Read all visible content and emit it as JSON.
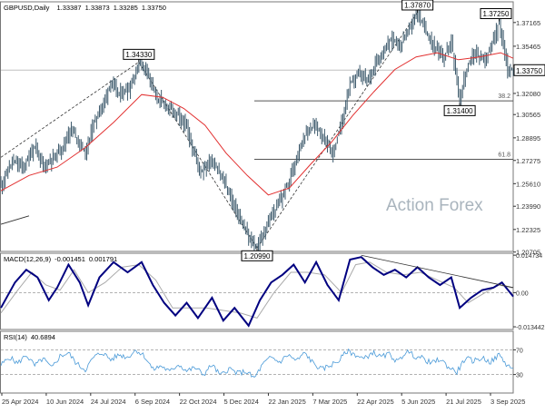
{
  "chart_data": {
    "type": "line",
    "symbol": "GBPUSD",
    "timeframe": "Daily",
    "title": "GBPUSD,Daily",
    "ohlc": {
      "open": "1.33387",
      "high": "1.33873",
      "low": "1.33285",
      "close": "1.33750"
    },
    "watermark": "Action Forex",
    "colors": {
      "price": "#3d5a6c",
      "ma": "#e23030",
      "macd_main": "#000080",
      "macd_signal": "#aaaaaa",
      "rsi": "#4a9ad8",
      "fib": "#555555",
      "trend": "#333333",
      "grid": "#c0c0c0"
    },
    "x_labels": [
      "25 Apr 2024",
      "10 Jun 2024",
      "24 Jul 2024",
      "6 Sep 2024",
      "22 Oct 2024",
      "5 Dec 2024",
      "22 Jan 2025",
      "7 Mar 2025",
      "22 Apr 2025",
      "5 Jun 2025",
      "21 Jul 2025",
      "3 Sep 2025"
    ],
    "price_panel": {
      "ylim": [
        1.2075,
        1.3865
      ],
      "y_ticks": [
        "1.37165",
        "1.35465",
        "1.33750",
        "1.32080",
        "1.30565",
        "1.28895",
        "1.27275",
        "1.25610",
        "1.23990",
        "1.22325",
        "1.20705"
      ],
      "current_price": "1.33750",
      "price_path": [
        [
          0,
          1.255
        ],
        [
          8,
          1.272
        ],
        [
          16,
          1.268
        ],
        [
          24,
          1.283
        ],
        [
          30,
          1.268
        ],
        [
          38,
          1.276
        ],
        [
          44,
          1.283
        ],
        [
          50,
          1.296
        ],
        [
          56,
          1.285
        ],
        [
          60,
          1.278
        ],
        [
          66,
          1.3
        ],
        [
          72,
          1.312
        ],
        [
          78,
          1.329
        ],
        [
          84,
          1.32
        ],
        [
          92,
          1.325
        ],
        [
          98,
          1.3433
        ],
        [
          104,
          1.338
        ],
        [
          110,
          1.318
        ],
        [
          118,
          1.312
        ],
        [
          126,
          1.305
        ],
        [
          132,
          1.296
        ],
        [
          136,
          1.281
        ],
        [
          142,
          1.265
        ],
        [
          150,
          1.273
        ],
        [
          158,
          1.258
        ],
        [
          166,
          1.24
        ],
        [
          172,
          1.225
        ],
        [
          178,
          1.214
        ],
        [
          182,
          1.2099
        ],
        [
          188,
          1.224
        ],
        [
          194,
          1.236
        ],
        [
          200,
          1.247
        ],
        [
          206,
          1.262
        ],
        [
          212,
          1.283
        ],
        [
          218,
          1.294
        ],
        [
          224,
          1.298
        ],
        [
          230,
          1.286
        ],
        [
          236,
          1.278
        ],
        [
          242,
          1.3
        ],
        [
          248,
          1.328
        ],
        [
          254,
          1.335
        ],
        [
          260,
          1.33
        ],
        [
          266,
          1.342
        ],
        [
          272,
          1.352
        ],
        [
          278,
          1.36
        ],
        [
          284,
          1.356
        ],
        [
          290,
          1.368
        ],
        [
          296,
          1.3787
        ],
        [
          302,
          1.365
        ],
        [
          308,
          1.354
        ],
        [
          314,
          1.346
        ],
        [
          320,
          1.358
        ],
        [
          326,
          1.314
        ],
        [
          330,
          1.336
        ],
        [
          336,
          1.35
        ],
        [
          342,
          1.345
        ],
        [
          348,
          1.352
        ],
        [
          354,
          1.3725
        ],
        [
          360,
          1.338
        ],
        [
          364,
          1.3375
        ]
      ],
      "ma_path": [
        [
          0,
          1.251
        ],
        [
          20,
          1.262
        ],
        [
          40,
          1.268
        ],
        [
          60,
          1.282
        ],
        [
          80,
          1.3
        ],
        [
          100,
          1.32
        ],
        [
          115,
          1.318
        ],
        [
          130,
          1.31
        ],
        [
          145,
          1.298
        ],
        [
          160,
          1.278
        ],
        [
          175,
          1.262
        ],
        [
          190,
          1.248
        ],
        [
          205,
          1.253
        ],
        [
          220,
          1.27
        ],
        [
          235,
          1.286
        ],
        [
          250,
          1.305
        ],
        [
          265,
          1.322
        ],
        [
          280,
          1.338
        ],
        [
          295,
          1.347
        ],
        [
          310,
          1.35
        ],
        [
          325,
          1.345
        ],
        [
          340,
          1.347
        ],
        [
          355,
          1.35
        ],
        [
          364,
          1.346
        ]
      ],
      "annotations": [
        {
          "x": 98,
          "value": 1.3433,
          "text": "1.34330",
          "position": "above"
        },
        {
          "x": 182,
          "value": 1.2099,
          "text": "1.20990",
          "position": "below"
        },
        {
          "x": 296,
          "value": 1.3787,
          "text": "1.37870",
          "position": "above"
        },
        {
          "x": 354,
          "value": 1.3725,
          "text": "1.37250",
          "position": "above"
        },
        {
          "x": 326,
          "value": 1.314,
          "text": "1.31400",
          "position": "below"
        }
      ],
      "fib_levels": [
        {
          "label": "38.2",
          "value": 1.3155,
          "from_x": 182
        },
        {
          "label": "61.8",
          "value": 1.2736,
          "from_x": 182
        }
      ],
      "trendlines": [
        {
          "from": [
            0,
            1.275
          ],
          "to": [
            98,
            1.3433
          ],
          "dashed": true
        },
        {
          "from": [
            98,
            1.3433
          ],
          "to": [
            182,
            1.2099
          ],
          "dashed": true
        },
        {
          "from": [
            182,
            1.2099
          ],
          "to": [
            296,
            1.3787
          ],
          "dashed": true
        },
        {
          "from": [
            0,
            1.227
          ],
          "to": [
            20,
            1.233
          ],
          "dashed": false
        }
      ]
    },
    "macd_panel": {
      "label": "MACD(12,26,9)",
      "main_value": "-0.001451",
      "signal_value": "0.001791",
      "ylim": [
        -0.0145,
        0.0155
      ],
      "y_ticks": [
        "0.014734",
        "0.00",
        "-0.013442"
      ],
      "main_path": [
        [
          0,
          -0.006
        ],
        [
          10,
          0.004
        ],
        [
          18,
          0.009
        ],
        [
          26,
          0.006
        ],
        [
          34,
          -0.003
        ],
        [
          40,
          0.002
        ],
        [
          48,
          0.011
        ],
        [
          56,
          0.004
        ],
        [
          62,
          -0.005
        ],
        [
          70,
          0.006
        ],
        [
          80,
          0.012
        ],
        [
          90,
          0.008
        ],
        [
          100,
          0.012
        ],
        [
          108,
          0.003
        ],
        [
          116,
          -0.004
        ],
        [
          124,
          -0.009
        ],
        [
          132,
          -0.004
        ],
        [
          140,
          -0.01
        ],
        [
          150,
          -0.002
        ],
        [
          158,
          -0.011
        ],
        [
          166,
          -0.006
        ],
        [
          176,
          -0.013
        ],
        [
          184,
          -0.003
        ],
        [
          192,
          0.004
        ],
        [
          200,
          0.007
        ],
        [
          208,
          0.011
        ],
        [
          216,
          0.004
        ],
        [
          224,
          0.012
        ],
        [
          232,
          0.003
        ],
        [
          240,
          -0.003
        ],
        [
          248,
          0.013
        ],
        [
          256,
          0.014
        ],
        [
          264,
          0.01
        ],
        [
          272,
          0.007
        ],
        [
          280,
          0.009
        ],
        [
          288,
          0.006
        ],
        [
          296,
          0.01
        ],
        [
          304,
          0.006
        ],
        [
          312,
          0.003
        ],
        [
          320,
          0.006
        ],
        [
          326,
          -0.006
        ],
        [
          334,
          -0.002
        ],
        [
          342,
          0.001
        ],
        [
          350,
          0.002
        ],
        [
          356,
          0.004
        ],
        [
          364,
          -0.0015
        ]
      ],
      "signal_path": [
        [
          0,
          -0.008
        ],
        [
          12,
          0.001
        ],
        [
          22,
          0.008
        ],
        [
          32,
          0.003
        ],
        [
          42,
          0.001
        ],
        [
          52,
          0.009
        ],
        [
          62,
          0.0
        ],
        [
          74,
          0.004
        ],
        [
          86,
          0.01
        ],
        [
          98,
          0.011
        ],
        [
          110,
          0.005
        ],
        [
          122,
          -0.006
        ],
        [
          134,
          -0.006
        ],
        [
          146,
          -0.006
        ],
        [
          158,
          -0.007
        ],
        [
          170,
          -0.008
        ],
        [
          182,
          -0.01
        ],
        [
          194,
          0.0
        ],
        [
          206,
          0.008
        ],
        [
          218,
          0.008
        ],
        [
          230,
          0.007
        ],
        [
          242,
          0.0
        ],
        [
          252,
          0.011
        ],
        [
          262,
          0.012
        ],
        [
          274,
          0.008
        ],
        [
          286,
          0.007
        ],
        [
          298,
          0.008
        ],
        [
          310,
          0.005
        ],
        [
          322,
          0.002
        ],
        [
          332,
          -0.004
        ],
        [
          344,
          0.0
        ],
        [
          354,
          0.003
        ],
        [
          364,
          0.0018
        ]
      ],
      "trendline": {
        "from": [
          256,
          0.0147
        ],
        "to": [
          364,
          0.002
        ]
      }
    },
    "rsi_panel": {
      "label": "RSI(14)",
      "value": "40.6894",
      "ylim": [
        0,
        100
      ],
      "y_ticks": [
        "70",
        "30"
      ],
      "levels": [
        70,
        30
      ],
      "rsi_path": [
        [
          0,
          45
        ],
        [
          6,
          58
        ],
        [
          12,
          48
        ],
        [
          18,
          62
        ],
        [
          24,
          44
        ],
        [
          30,
          56
        ],
        [
          36,
          40
        ],
        [
          42,
          60
        ],
        [
          48,
          65
        ],
        [
          54,
          47
        ],
        [
          60,
          38
        ],
        [
          66,
          58
        ],
        [
          72,
          66
        ],
        [
          78,
          54
        ],
        [
          84,
          62
        ],
        [
          90,
          58
        ],
        [
          96,
          70
        ],
        [
          102,
          60
        ],
        [
          108,
          38
        ],
        [
          114,
          44
        ],
        [
          120,
          34
        ],
        [
          126,
          47
        ],
        [
          132,
          36
        ],
        [
          138,
          41
        ],
        [
          144,
          30
        ],
        [
          150,
          46
        ],
        [
          156,
          28
        ],
        [
          162,
          40
        ],
        [
          168,
          32
        ],
        [
          174,
          35
        ],
        [
          180,
          24
        ],
        [
          186,
          46
        ],
        [
          192,
          58
        ],
        [
          198,
          50
        ],
        [
          204,
          62
        ],
        [
          210,
          52
        ],
        [
          216,
          65
        ],
        [
          222,
          48
        ],
        [
          228,
          38
        ],
        [
          234,
          45
        ],
        [
          240,
          52
        ],
        [
          246,
          68
        ],
        [
          252,
          62
        ],
        [
          258,
          55
        ],
        [
          264,
          66
        ],
        [
          270,
          58
        ],
        [
          276,
          63
        ],
        [
          282,
          50
        ],
        [
          288,
          68
        ],
        [
          294,
          60
        ],
        [
          300,
          56
        ],
        [
          306,
          48
        ],
        [
          312,
          55
        ],
        [
          318,
          42
        ],
        [
          324,
          34
        ],
        [
          330,
          56
        ],
        [
          336,
          52
        ],
        [
          342,
          57
        ],
        [
          348,
          50
        ],
        [
          354,
          62
        ],
        [
          360,
          44
        ],
        [
          364,
          40.7
        ]
      ]
    }
  }
}
